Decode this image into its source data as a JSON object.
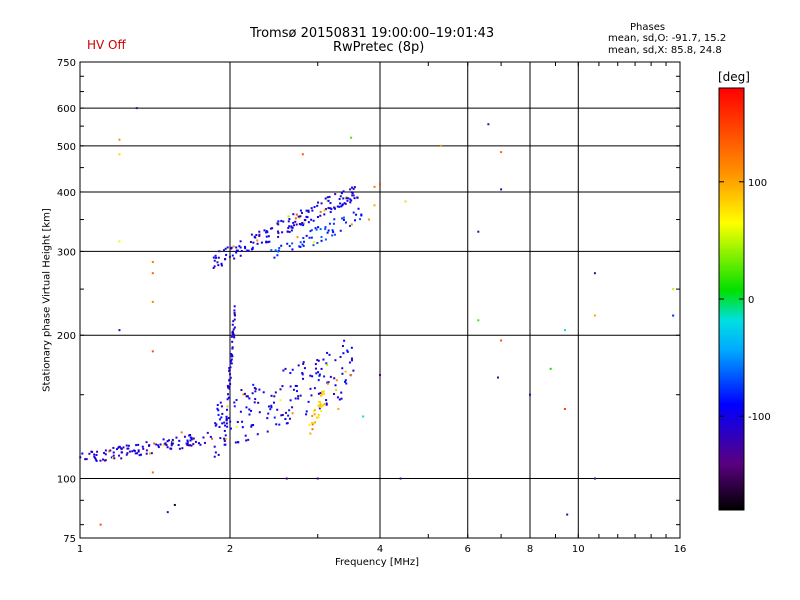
{
  "header": {
    "title": "Tromsø 20150831 19:00:00–19:01:43",
    "subtitle": "RwPretec (8p)",
    "status": "HV Off"
  },
  "phases_box": {
    "title": "Phases",
    "line1": "mean, sd,O: -91.7, 15.2",
    "line2": "mean, sd,X: 85.8, 24.8"
  },
  "colorbar": {
    "unit": "[deg]",
    "ticks": [
      100,
      0,
      -100
    ],
    "range": [
      -180,
      180
    ]
  },
  "chart_data": {
    "type": "scatter",
    "title": "Tromsø 20150831 19:00:00–19:01:43",
    "xlabel": "Frequency [MHz]",
    "ylabel": "Stationary phase Virtual Height [km]",
    "xscale": "log",
    "yscale": "log",
    "xlim": [
      1,
      16
    ],
    "ylim": [
      75,
      750
    ],
    "xticks": [
      1,
      2,
      4,
      6,
      8,
      10,
      16
    ],
    "yticks": [
      75,
      100,
      200,
      300,
      400,
      500,
      600,
      750
    ],
    "grid": true,
    "traces": [
      {
        "name": "E region trace",
        "f_start": 1.0,
        "f_end": 1.85,
        "h_start": 110,
        "h_end": 122,
        "phase": -110,
        "count": 120,
        "spread": 0.03
      },
      {
        "name": "F region low branch",
        "f_start": 1.85,
        "f_end": 3.6,
        "h_start": 125,
        "h_end": 175,
        "phase": -100,
        "count": 180,
        "spread": 0.14
      },
      {
        "name": "F2 trace O",
        "f_start": 1.85,
        "f_end": 3.65,
        "h_start": 285,
        "h_end": 405,
        "phase": -105,
        "count": 170,
        "spread": 0.04
      },
      {
        "name": "F2 trace X",
        "f_start": 2.4,
        "f_end": 3.7,
        "h_start": 290,
        "h_end": 360,
        "phase": -80,
        "count": 60,
        "spread": 0.04
      },
      {
        "name": "Vertical spread near 2 MHz",
        "f_start": 1.95,
        "f_end": 2.05,
        "h_start": 120,
        "h_end": 230,
        "phase": -105,
        "count": 60,
        "spread": 0.04
      },
      {
        "name": "Yellow cluster",
        "f_start": 2.9,
        "f_end": 3.1,
        "h_start": 128,
        "h_end": 150,
        "phase": 90,
        "count": 30,
        "spread": 0.04
      }
    ],
    "points": [
      {
        "f": 1.3,
        "h": 600,
        "phase": -120
      },
      {
        "f": 1.2,
        "h": 515,
        "phase": 110
      },
      {
        "f": 1.2,
        "h": 480,
        "phase": 80
      },
      {
        "f": 1.2,
        "h": 315,
        "phase": 60
      },
      {
        "f": 1.4,
        "h": 285,
        "phase": 120
      },
      {
        "f": 1.4,
        "h": 270,
        "phase": 130
      },
      {
        "f": 1.4,
        "h": 235,
        "phase": 115
      },
      {
        "f": 1.2,
        "h": 205,
        "phase": -120
      },
      {
        "f": 1.4,
        "h": 185,
        "phase": 140
      },
      {
        "f": 1.1,
        "h": 80,
        "phase": 140
      },
      {
        "f": 1.5,
        "h": 85,
        "phase": -130
      },
      {
        "f": 1.55,
        "h": 88,
        "phase": -170
      },
      {
        "f": 1.4,
        "h": 103,
        "phase": 130
      },
      {
        "f": 2.6,
        "h": 100,
        "phase": -130
      },
      {
        "f": 3.0,
        "h": 100,
        "phase": -130
      },
      {
        "f": 2.8,
        "h": 480,
        "phase": 140
      },
      {
        "f": 3.5,
        "h": 520,
        "phase": 20
      },
      {
        "f": 4.0,
        "h": 415,
        "phase": 150
      },
      {
        "f": 3.9,
        "h": 410,
        "phase": 120
      },
      {
        "f": 3.9,
        "h": 375,
        "phase": 100
      },
      {
        "f": 4.5,
        "h": 382,
        "phase": 80
      },
      {
        "f": 3.8,
        "h": 350,
        "phase": 110
      },
      {
        "f": 3.7,
        "h": 135,
        "phase": -20
      },
      {
        "f": 4.0,
        "h": 165,
        "phase": -140
      },
      {
        "f": 4.4,
        "h": 100,
        "phase": -130
      },
      {
        "f": 5.3,
        "h": 500,
        "phase": 110
      },
      {
        "f": 6.3,
        "h": 330,
        "phase": -130
      },
      {
        "f": 6.3,
        "h": 215,
        "phase": 20
      },
      {
        "f": 6.6,
        "h": 555,
        "phase": -130
      },
      {
        "f": 7.0,
        "h": 485,
        "phase": 130
      },
      {
        "f": 7.0,
        "h": 405,
        "phase": -130
      },
      {
        "f": 7.0,
        "h": 195,
        "phase": 140
      },
      {
        "f": 6.9,
        "h": 163,
        "phase": -130
      },
      {
        "f": 8.0,
        "h": 150,
        "phase": -130
      },
      {
        "f": 8.8,
        "h": 170,
        "phase": 10
      },
      {
        "f": 9.4,
        "h": 205,
        "phase": -20
      },
      {
        "f": 9.4,
        "h": 140,
        "phase": 150
      },
      {
        "f": 9.5,
        "h": 84,
        "phase": -130
      },
      {
        "f": 10.8,
        "h": 270,
        "phase": -130
      },
      {
        "f": 10.8,
        "h": 220,
        "phase": 100
      },
      {
        "f": 10.8,
        "h": 100,
        "phase": -130
      },
      {
        "f": 15.5,
        "h": 250,
        "phase": 50
      },
      {
        "f": 15.5,
        "h": 220,
        "phase": -80
      },
      {
        "f": 1.6,
        "h": 125,
        "phase": 120
      },
      {
        "f": 3.5,
        "h": 165,
        "phase": 120
      },
      {
        "f": 3.3,
        "h": 140,
        "phase": 100
      }
    ]
  }
}
